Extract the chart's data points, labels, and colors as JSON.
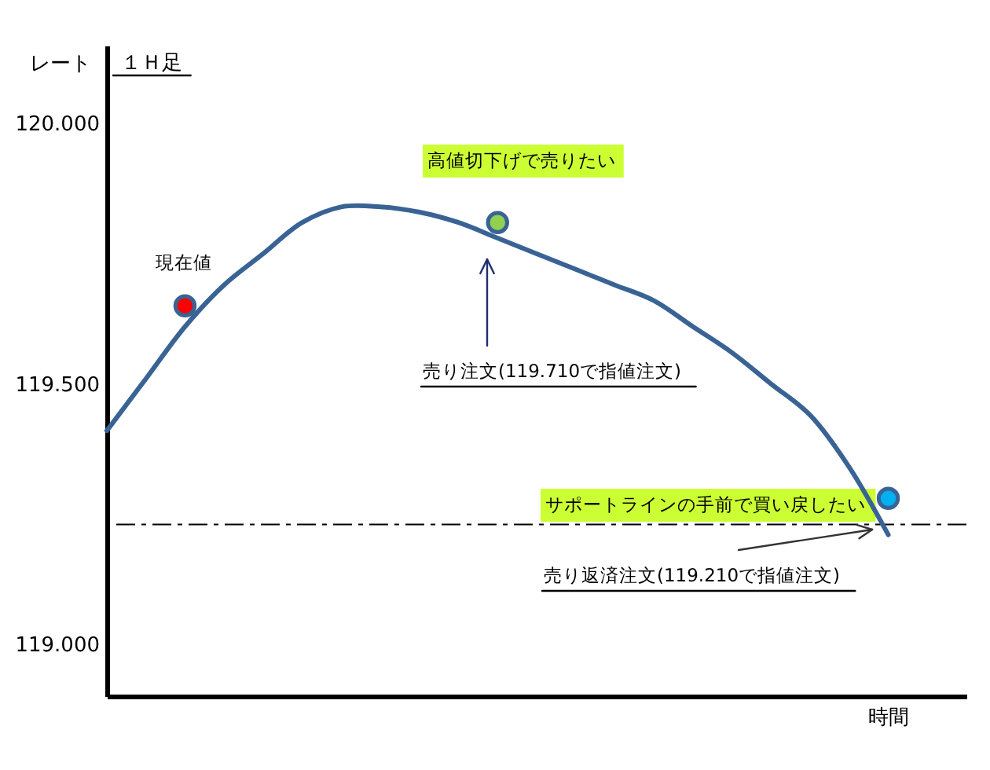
{
  "chart_data": {
    "type": "line",
    "title": "１Ｈ足",
    "xlabel": "時間",
    "ylabel": "レート",
    "tick_labels": "y",
    "categories": [
      null,
      null,
      null,
      null,
      null,
      null,
      null,
      null,
      null,
      null,
      null,
      null,
      null,
      null,
      null,
      null,
      null,
      null,
      null,
      null,
      null,
      null,
      null
    ],
    "series": [
      {
        "color": "#3a6395",
        "values": [
          119.41,
          119.51,
          119.61,
          119.69,
          119.75,
          119.81,
          119.84,
          119.84,
          119.83,
          119.81,
          119.78,
          119.75,
          119.72,
          119.69,
          119.66,
          119.61,
          119.56,
          119.5,
          119.44,
          119.34,
          119.21,
          null,
          null
        ]
      },
      {
        "type": "scatter",
        "marker": "circle",
        "values": [
          null,
          null,
          119.65,
          null,
          null,
          null,
          null,
          null,
          null,
          null,
          119.81,
          null,
          null,
          null,
          null,
          null,
          null,
          null,
          null,
          null,
          119.28,
          null,
          null
        ],
        "colors": [
          null,
          null,
          "#ff0000",
          null,
          null,
          null,
          null,
          null,
          null,
          null,
          "#92d050",
          null,
          null,
          null,
          null,
          null,
          null,
          null,
          null,
          null,
          "#00b0f0",
          null,
          null
        ]
      }
    ],
    "ylim": [
      118.9,
      120.15
    ],
    "yticks": [
      {
        "value": 119,
        "label": "119.000"
      },
      {
        "value": 119.5,
        "label": "119.500"
      },
      {
        "value": 120,
        "label": "120.000"
      }
    ],
    "ref_lines": [
      {
        "axis": "y",
        "value": 119.23,
        "color": "#000000",
        "line_style": "dashed"
      }
    ],
    "annotations": [
      "現在値",
      "高値切下げで売りたい",
      "売り注文(119.710で指値注文)",
      "サポートラインの手前で買い戻したい",
      "売り返済注文(119.210で指値注文)"
    ]
  }
}
